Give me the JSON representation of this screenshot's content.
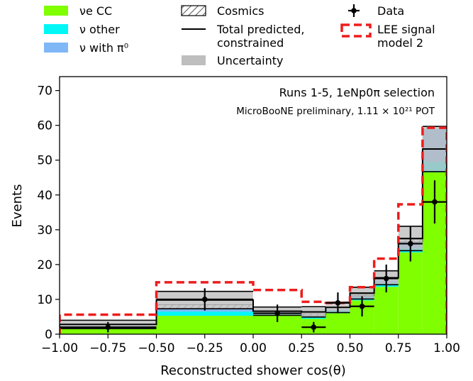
{
  "chart_data": {
    "type": "histogram",
    "xlabel": "Reconstructed shower cos(θ)",
    "ylabel": "Events",
    "xlim": [
      -1.0,
      1.0
    ],
    "ylim": [
      0,
      74
    ],
    "x_ticks": [
      "−1.00",
      "−0.75",
      "−0.50",
      "−0.25",
      "0.00",
      "0.25",
      "0.50",
      "0.75",
      "1.00"
    ],
    "y_ticks": [
      "0",
      "10",
      "20",
      "30",
      "40",
      "50",
      "60",
      "70"
    ],
    "annotation_line1": "Runs 1-5, 1eNp0π selection",
    "annotation_line2": "MicroBooNE preliminary, 1.11 × 10²¹ POT",
    "bin_edges": [
      -1.0,
      -0.5,
      0.0,
      0.25,
      0.375,
      0.5,
      0.625,
      0.75,
      0.875,
      1.0
    ],
    "bin_centers": [
      -0.75,
      -0.25,
      0.125,
      0.3125,
      0.4375,
      0.5625,
      0.6875,
      0.8125,
      0.9375
    ],
    "series": [
      {
        "name": "νe CC",
        "color": "#80ff00",
        "values": [
          1.5,
          5.3,
          5.3,
          4.4,
          6.0,
          9.7,
          13.6,
          23.5,
          46.5
        ]
      },
      {
        "name": "ν other",
        "color": "#00f7f7",
        "values": [
          0.3,
          1.2,
          0.6,
          0.6,
          0.8,
          0.8,
          1.0,
          1.2,
          3.0
        ]
      },
      {
        "name": "ν with π⁰",
        "color": "#7fb7f7",
        "values": [
          0.5,
          0.8,
          0.4,
          0.3,
          0.3,
          0.5,
          0.9,
          1.8,
          9.5
        ]
      },
      {
        "name": "Cosmics",
        "color": "#ffffff",
        "values": [
          0.0,
          1.2,
          0.0,
          0.6,
          0.0,
          0.4,
          0.0,
          0.7,
          0.0
        ]
      }
    ],
    "total_constrained": {
      "name": "Total predicted, constrained",
      "values": [
        2.8,
        9.8,
        6.6,
        6.4,
        7.7,
        11.8,
        16.2,
        27.5,
        53.2
      ]
    },
    "uncertainty": {
      "name": "Uncertainty",
      "color": "#bebebe",
      "values": [
        1.2,
        2.5,
        1.2,
        1.5,
        1.5,
        1.7,
        2.0,
        3.5,
        6.5
      ]
    },
    "lee_signal": {
      "name": "LEE signal\nmodel 2",
      "color": "#ee1c1c",
      "values": [
        5.6,
        14.9,
        12.7,
        9.3,
        9.0,
        13.5,
        21.7,
        37.3,
        59.3
      ]
    },
    "data": {
      "name": "Data",
      "values": [
        2,
        10,
        6,
        2,
        9,
        8,
        16,
        26,
        38
      ],
      "errors": [
        1.5,
        3.2,
        2.5,
        1.5,
        3.0,
        2.9,
        4.0,
        5.1,
        6.2
      ]
    },
    "legend": [
      {
        "label": "νe CC",
        "style": "fill",
        "color": "#80ff00"
      },
      {
        "label": "ν other",
        "style": "fill",
        "color": "#00f7f7"
      },
      {
        "label": "ν with π⁰",
        "style": "fill",
        "color": "#7fb7f7"
      },
      {
        "label": "Cosmics",
        "style": "hatch",
        "color": "#ffffff"
      },
      {
        "label": "Total predicted,\nconstrained",
        "style": "line",
        "color": "#000000"
      },
      {
        "label": "Uncertainty",
        "style": "fill",
        "color": "#bebebe"
      },
      {
        "label": "Data",
        "style": "errorbar",
        "color": "#000000"
      },
      {
        "label": "LEE signal\nmodel 2",
        "style": "dashed",
        "color": "#ee1c1c"
      }
    ],
    "legend_placement": "above plot, three columns",
    "grid": false
  }
}
